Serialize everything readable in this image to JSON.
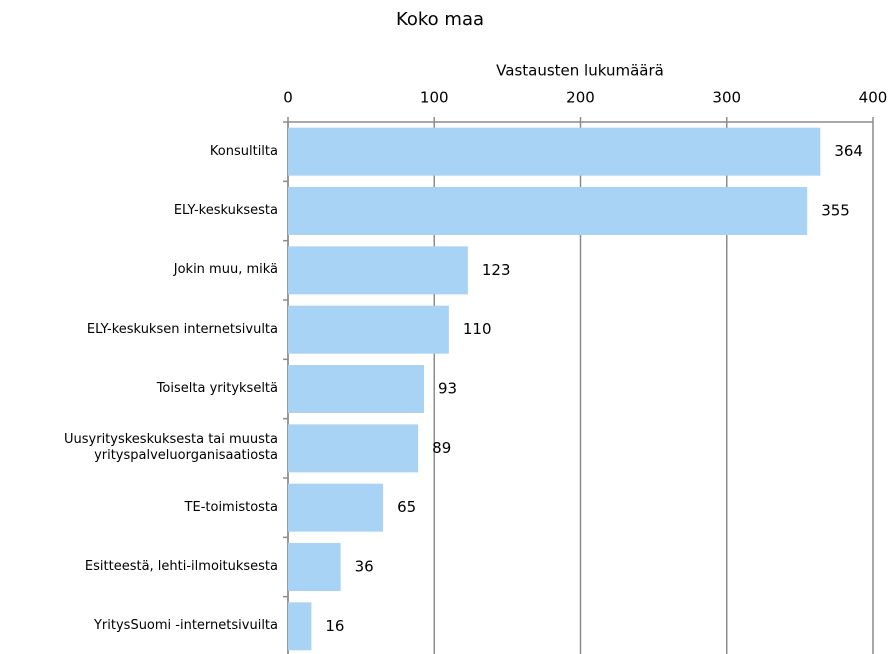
{
  "chart_data": {
    "type": "bar",
    "orientation": "horizontal",
    "title": "Koko maa",
    "x_label": "Vastausten lukumäärä",
    "categories": [
      "Konsultilta",
      "ELY-keskuksesta",
      "Jokin muu, mikä",
      "ELY-keskuksen internetsivulta",
      "Toiselta yritykseltä",
      "Uusyrityskeskuksesta tai muusta\nyrityspalveluorganisaatiosta",
      "TE-toimistosta",
      "Esitteestä, lehti-ilmoituksesta",
      "YritysSuomi -internetsivuilta"
    ],
    "values": [
      364,
      355,
      123,
      110,
      93,
      89,
      65,
      36,
      16
    ],
    "color": "#a9d3f5",
    "xlim": [
      0,
      400
    ],
    "xticks": [
      0,
      100,
      200,
      300,
      400
    ],
    "grid": true
  }
}
